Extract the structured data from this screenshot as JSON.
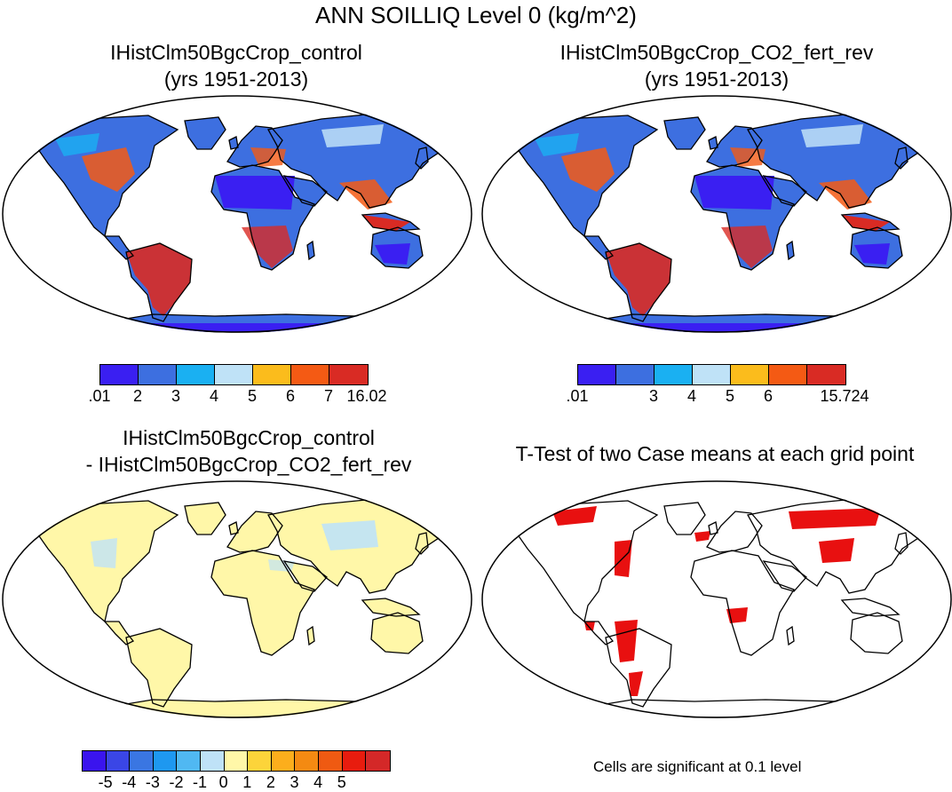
{
  "figure_title": "ANN SOILLIQ Level 0 (kg/m^2)",
  "panels": [
    {
      "title_line1": "IHistClm50BgcCrop_control",
      "title_line2": "(yrs 1951-2013)",
      "colorbar": {
        "colors": [
          "#3a1ff2",
          "#3d6fe0",
          "#1ab0f2",
          "#bfe2f7",
          "#fbbc1c",
          "#f45a14",
          "#d92b24"
        ],
        "labels": [
          ".01",
          "2",
          "3",
          "4",
          "5",
          "6",
          "7",
          "16.02"
        ]
      }
    },
    {
      "title_line1": "IHistClm50BgcCrop_CO2_fert_rev",
      "title_line2": "(yrs 1951-2013)",
      "colorbar": {
        "colors": [
          "#3a1ff2",
          "#3d6fe0",
          "#1ab0f2",
          "#bfe2f7",
          "#fbbc1c",
          "#f45a14",
          "#d92b24"
        ],
        "labels": [
          ".01",
          "",
          "3",
          "4",
          "5",
          "6",
          "",
          "15.724"
        ]
      }
    },
    {
      "title_line1": "IHistClm50BgcCrop_control",
      "title_line2": "- IHistClm50BgcCrop_CO2_fert_rev",
      "colorbar": {
        "colors": [
          "#3a14ee",
          "#3a46e6",
          "#3a76e2",
          "#1e98f0",
          "#50b8f2",
          "#bfe2f7",
          "#fff7a8",
          "#fcd43a",
          "#fcae1c",
          "#f48a12",
          "#ef5a12",
          "#e81c0e",
          "#d42828"
        ],
        "labels": [
          "-5",
          "-4",
          "-3",
          "-2",
          "-1",
          "0",
          "1",
          "2",
          "3",
          "4",
          "5"
        ]
      }
    },
    {
      "title_line1": "T-Test of two Case means at each grid point",
      "title_line2": "",
      "note": "Cells are significant at 0.1 level"
    }
  ]
}
